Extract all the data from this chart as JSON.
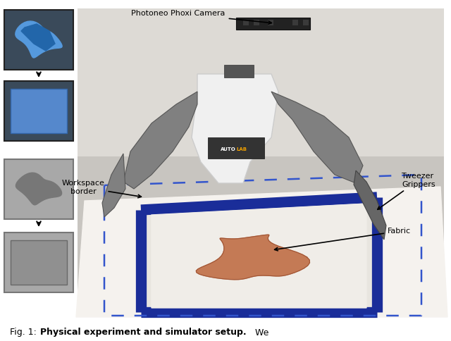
{
  "fig_width": 6.4,
  "fig_height": 4.84,
  "dpi": 100,
  "bg_color": "#ffffff",
  "caption_prefix": "Fig. 1: ",
  "caption_bold": "Physical experiment and simulator setup.",
  "caption_regular": " We",
  "caption_fontsize": 9,
  "label_camera": "Photoneo Phoxi Camera",
  "label_tweezer": "Tweezer\nGrippers",
  "label_workspace": "Workspace\nborder",
  "label_fabric": "Fabric",
  "camera_color": "#222222",
  "robot_body_color": "#f0f0f0",
  "robot_arm_color": "#808080",
  "table_color": "#f5f2ee",
  "border_color": "#1a2d99",
  "dash_color": "#3355cc",
  "fabric_color": "#c47a55",
  "annotation_fontsize": 8
}
